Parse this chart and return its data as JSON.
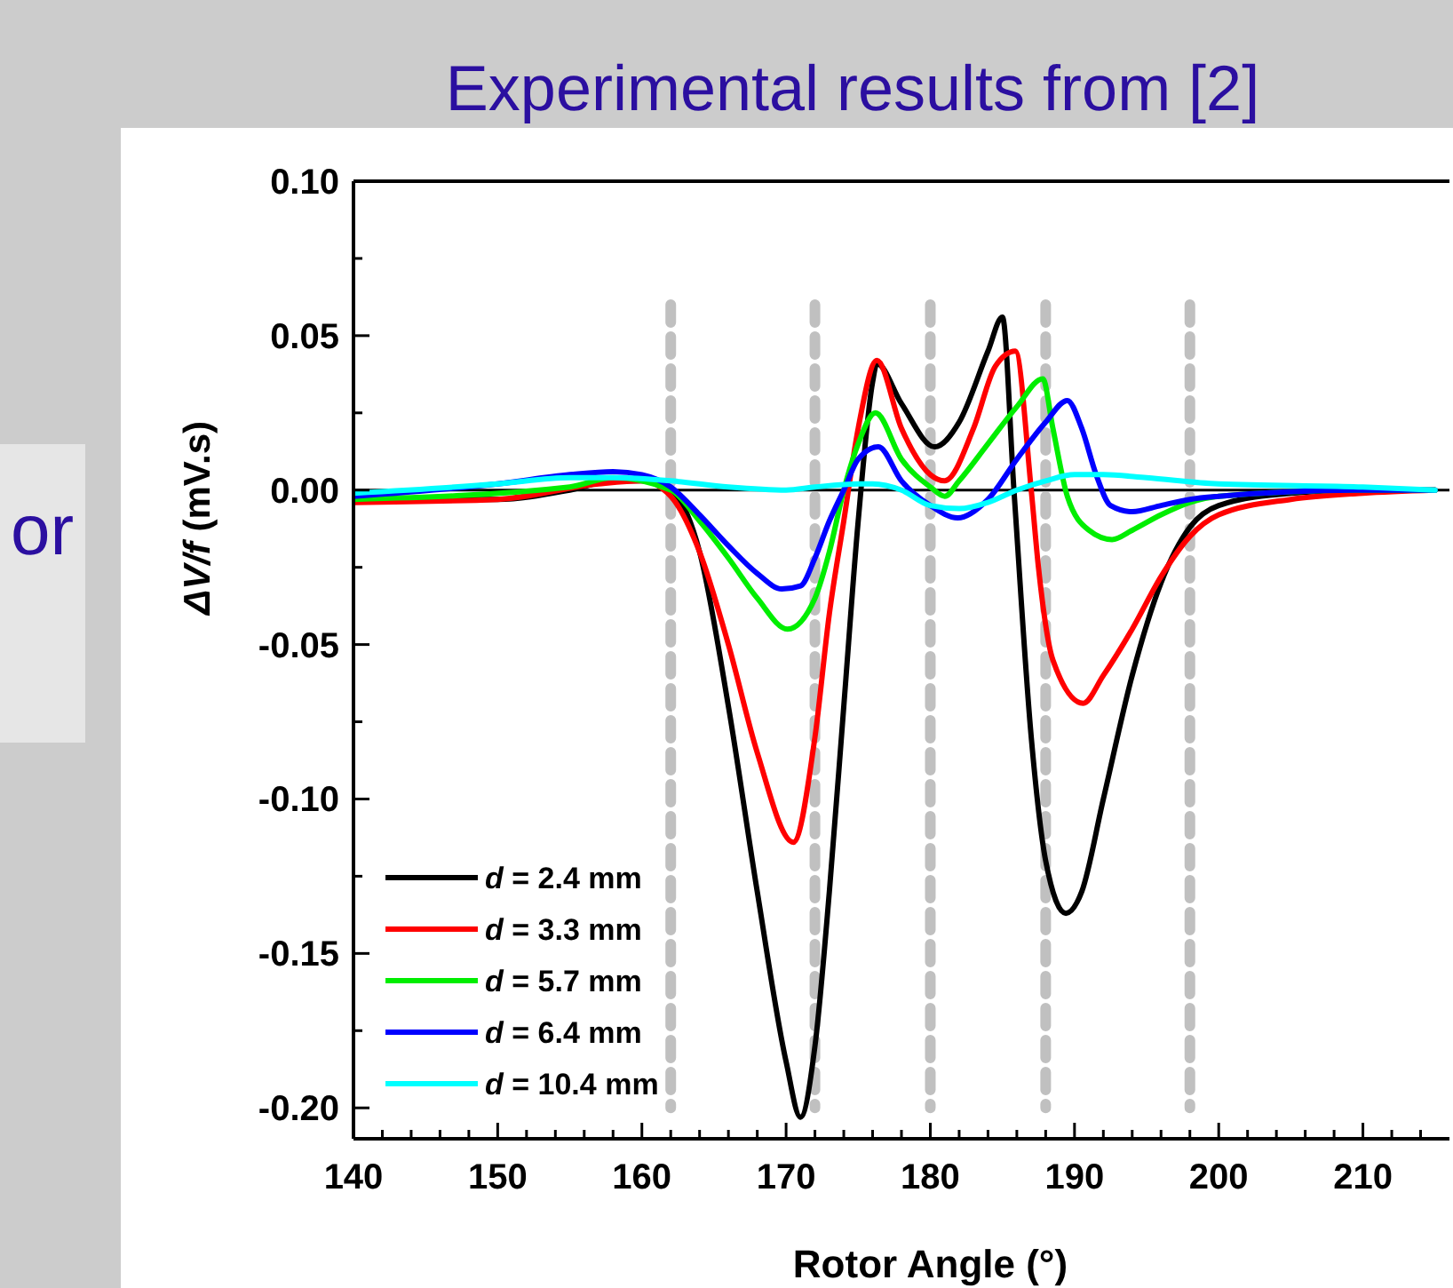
{
  "chart_data": {
    "type": "line",
    "title": "Experimental results from [2]",
    "xlabel": "Rotor Angle (°)",
    "ylabel": "ΔV/f (mV.s)",
    "annotations": [
      "or"
    ],
    "xlim": [
      140,
      216
    ],
    "ylim": [
      -0.21,
      0.1
    ],
    "xticks": [
      140,
      {
        "value": 142,
        "label": null
      },
      {
        "value": 144,
        "label": null
      },
      {
        "value": 146,
        "label": null
      },
      {
        "value": 148,
        "label": null
      },
      150,
      {
        "value": 152,
        "label": null
      },
      {
        "value": 154,
        "label": null
      },
      {
        "value": 156,
        "label": null
      },
      {
        "value": 158,
        "label": null
      },
      160,
      {
        "value": 162,
        "label": null
      },
      {
        "value": 164,
        "label": null
      },
      {
        "value": 166,
        "label": null
      },
      {
        "value": 168,
        "label": null
      },
      170,
      {
        "value": 172,
        "label": null
      },
      {
        "value": 174,
        "label": null
      },
      {
        "value": 176,
        "label": null
      },
      {
        "value": 178,
        "label": null
      },
      180,
      {
        "value": 182,
        "label": null
      },
      {
        "value": 184,
        "label": null
      },
      {
        "value": 186,
        "label": null
      },
      {
        "value": 188,
        "label": null
      },
      190,
      {
        "value": 192,
        "label": null
      },
      {
        "value": 194,
        "label": null
      },
      {
        "value": 196,
        "label": null
      },
      {
        "value": 198,
        "label": null
      },
      200,
      {
        "value": 202,
        "label": null
      },
      {
        "value": 204,
        "label": null
      },
      {
        "value": 206,
        "label": null
      },
      {
        "value": 208,
        "label": null
      },
      210,
      {
        "value": 212,
        "label": null
      },
      {
        "value": 214,
        "label": null
      }
    ],
    "yticks": [
      {
        "value": 0.1,
        "label": "0.10"
      },
      {
        "value": 0.075,
        "label": null
      },
      {
        "value": 0.05,
        "label": "0.05"
      },
      {
        "value": 0.025,
        "label": null
      },
      {
        "value": 0,
        "label": "0.00"
      },
      {
        "value": -0.025,
        "label": null
      },
      {
        "value": -0.05,
        "label": "-0.05"
      },
      {
        "value": -0.075,
        "label": null
      },
      {
        "value": -0.1,
        "label": "-0.10"
      },
      {
        "value": -0.125,
        "label": null
      },
      {
        "value": -0.15,
        "label": "-0.15"
      },
      {
        "value": -0.175,
        "label": null
      },
      {
        "value": -0.2,
        "label": "-0.20"
      }
    ],
    "grid": false,
    "legend": "bottom left",
    "marker": "none",
    "line_style": "solid",
    "ref_lines": [
      {
        "axis": "y",
        "value": 0,
        "color": "#000000",
        "line_style": "solid"
      },
      {
        "axis": "x",
        "value": 162,
        "color": "#c0c0c0",
        "line_style": "dashed"
      },
      {
        "axis": "x",
        "value": 172,
        "color": "#c0c0c0",
        "line_style": "dashed"
      },
      {
        "axis": "x",
        "value": 180,
        "color": "#c0c0c0",
        "line_style": "dashed"
      },
      {
        "axis": "x",
        "value": 188,
        "color": "#c0c0c0",
        "line_style": "dashed"
      },
      {
        "axis": "x",
        "value": 198,
        "color": "#c0c0c0",
        "line_style": "dashed"
      }
    ],
    "series": [
      {
        "name": "d = 2.4 mm",
        "color": "#000000",
        "x": [
          140,
          150,
          155,
          158,
          160,
          162,
          164,
          166,
          168,
          170,
          171,
          172,
          173,
          174,
          175,
          176,
          176.3,
          178,
          180.3,
          182,
          184,
          185,
          185.8,
          187,
          188,
          189.4,
          190.5,
          192,
          194,
          196,
          198,
          200,
          205,
          210,
          215
        ],
        "values": [
          -0.003,
          -0.003,
          0,
          0.003,
          0.003,
          0,
          -0.02,
          -0.07,
          -0.13,
          -0.185,
          -0.203,
          -0.18,
          -0.13,
          -0.07,
          -0.01,
          0.035,
          0.041,
          0.028,
          0.014,
          0.022,
          0.045,
          0.056,
          0.0,
          -0.08,
          -0.12,
          -0.137,
          -0.13,
          -0.1,
          -0.06,
          -0.03,
          -0.012,
          -0.005,
          -0.001,
          0,
          0
        ]
      },
      {
        "name": "d = 3.3 mm",
        "color": "#ff0000",
        "x": [
          140,
          150,
          157,
          160,
          162,
          164,
          166,
          168,
          170.5,
          172,
          173,
          174,
          175,
          176.3,
          178,
          180,
          181,
          183,
          184.5,
          185.9,
          187,
          187.5,
          188.5,
          190.6,
          192,
          194,
          196,
          198,
          200,
          205,
          210,
          215
        ],
        "values": [
          -0.004,
          -0.003,
          0.002,
          0.003,
          -0.002,
          -0.02,
          -0.05,
          -0.085,
          -0.114,
          -0.08,
          -0.04,
          -0.01,
          0.02,
          0.042,
          0.02,
          0.005,
          0.003,
          0.02,
          0.04,
          0.045,
          0,
          -0.025,
          -0.055,
          -0.069,
          -0.06,
          -0.045,
          -0.028,
          -0.015,
          -0.008,
          -0.003,
          -0.001,
          0
        ]
      },
      {
        "name": "d = 5.7 mm",
        "color": "#00ee00",
        "x": [
          140,
          155,
          158,
          162,
          164,
          166,
          168,
          170.1,
          172,
          173,
          174,
          175,
          176.2,
          178,
          180,
          181,
          182,
          184,
          186,
          187.8,
          188.5,
          189.5,
          191,
          192.6,
          194,
          196,
          198,
          200,
          210,
          215
        ],
        "values": [
          -0.003,
          0.001,
          0.004,
          0,
          -0.01,
          -0.022,
          -0.035,
          -0.045,
          -0.035,
          -0.02,
          0,
          0.015,
          0.025,
          0.01,
          0.001,
          -0.002,
          0.003,
          0.015,
          0.027,
          0.036,
          0.02,
          -0.002,
          -0.013,
          -0.016,
          -0.013,
          -0.008,
          -0.004,
          -0.002,
          0,
          0
        ]
      },
      {
        "name": "d = 6.4 mm",
        "color": "#0000ff",
        "x": [
          140,
          150,
          155,
          158,
          160,
          162,
          164,
          166,
          168,
          169.7,
          171,
          172,
          173,
          174,
          175,
          176.4,
          178,
          180,
          181.9,
          184,
          186,
          188,
          189.5,
          190.5,
          191.5,
          192.5,
          194,
          196,
          198,
          200,
          210,
          215
        ],
        "values": [
          -0.002,
          0.002,
          0.005,
          0.006,
          0.005,
          0.001,
          -0.008,
          -0.018,
          -0.027,
          -0.032,
          -0.031,
          -0.022,
          -0.01,
          0,
          0.01,
          0.014,
          0.003,
          -0.005,
          -0.009,
          -0.003,
          0.01,
          0.022,
          0.029,
          0.02,
          0.005,
          -0.005,
          -0.007,
          -0.005,
          -0.003,
          -0.002,
          0,
          0
        ]
      },
      {
        "name": "d = 10.4 mm",
        "color": "#00ffff",
        "x": [
          140,
          150,
          155,
          158,
          162,
          166,
          170,
          172,
          175,
          176,
          178,
          180,
          182,
          184,
          186,
          188,
          190,
          192,
          195,
          200,
          210,
          215
        ],
        "values": [
          -0.001,
          0.002,
          0.004,
          0.004,
          0.003,
          0.001,
          0,
          0.001,
          0.002,
          0.002,
          0,
          -0.005,
          -0.006,
          -0.004,
          0,
          0.003,
          0.005,
          0.005,
          0.004,
          0.002,
          0.001,
          0
        ]
      }
    ]
  }
}
